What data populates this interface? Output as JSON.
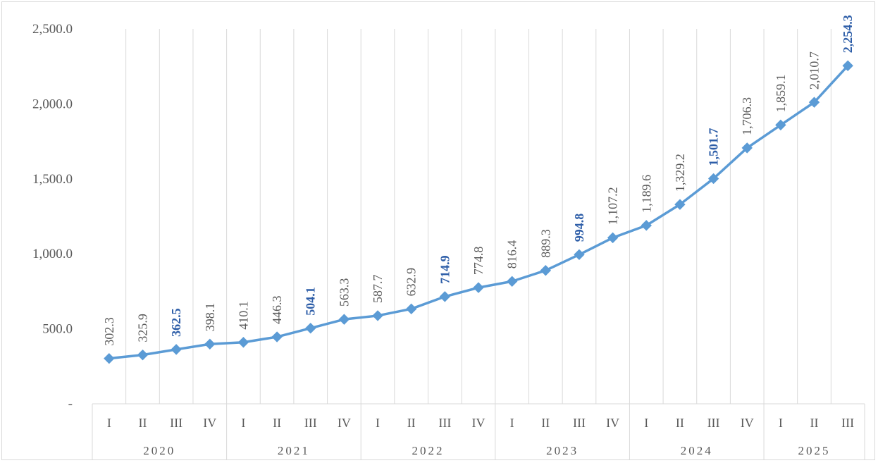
{
  "chart_data": {
    "type": "line",
    "x": [
      "I",
      "II",
      "III",
      "IV",
      "I",
      "II",
      "III",
      "IV",
      "I",
      "II",
      "III",
      "IV",
      "I",
      "II",
      "III",
      "IV",
      "I",
      "II",
      "III",
      "IV",
      "I",
      "II",
      "III"
    ],
    "years": [
      {
        "label": "2020",
        "quarters": 4
      },
      {
        "label": "2021",
        "quarters": 4
      },
      {
        "label": "2022",
        "quarters": 4
      },
      {
        "label": "2023",
        "quarters": 4
      },
      {
        "label": "2024",
        "quarters": 4
      },
      {
        "label": "2025",
        "quarters": 3
      }
    ],
    "series": [
      {
        "values": [
          302.3,
          325.9,
          362.5,
          398.1,
          410.1,
          446.3,
          504.1,
          563.3,
          587.7,
          632.9,
          714.9,
          774.8,
          816.4,
          889.3,
          994.8,
          1107.2,
          1189.6,
          1329.2,
          1501.7,
          1706.3,
          1859.1,
          2010.7,
          2254.3
        ],
        "labels": [
          "302.3",
          "325.9",
          "362.5",
          "398.1",
          "410.1",
          "446.3",
          "504.1",
          "563.3",
          "587.7",
          "632.9",
          "714.9",
          "774.8",
          "816.4",
          "889.3",
          "994.8",
          "1,107.2",
          "1,189.6",
          "1,329.2",
          "1,501.7",
          "1,706.3",
          "1,859.1",
          "2,010.7",
          "2,254.3"
        ],
        "highlighted": [
          2,
          6,
          10,
          14,
          18,
          22
        ],
        "color": "#5b9bd5"
      }
    ],
    "ylim": [
      0,
      2500
    ],
    "yticks": [
      0,
      500,
      1000,
      1500,
      2000,
      2500
    ],
    "ytick_labels": [
      "-",
      "500.0",
      "1,000.0",
      "1,500.0",
      "2,000.0",
      "2,500.0"
    ],
    "grid": "vertical",
    "highlight_color": "#2e5ea8",
    "label_color": "#595959",
    "grid_color": "#d9d9d9"
  }
}
